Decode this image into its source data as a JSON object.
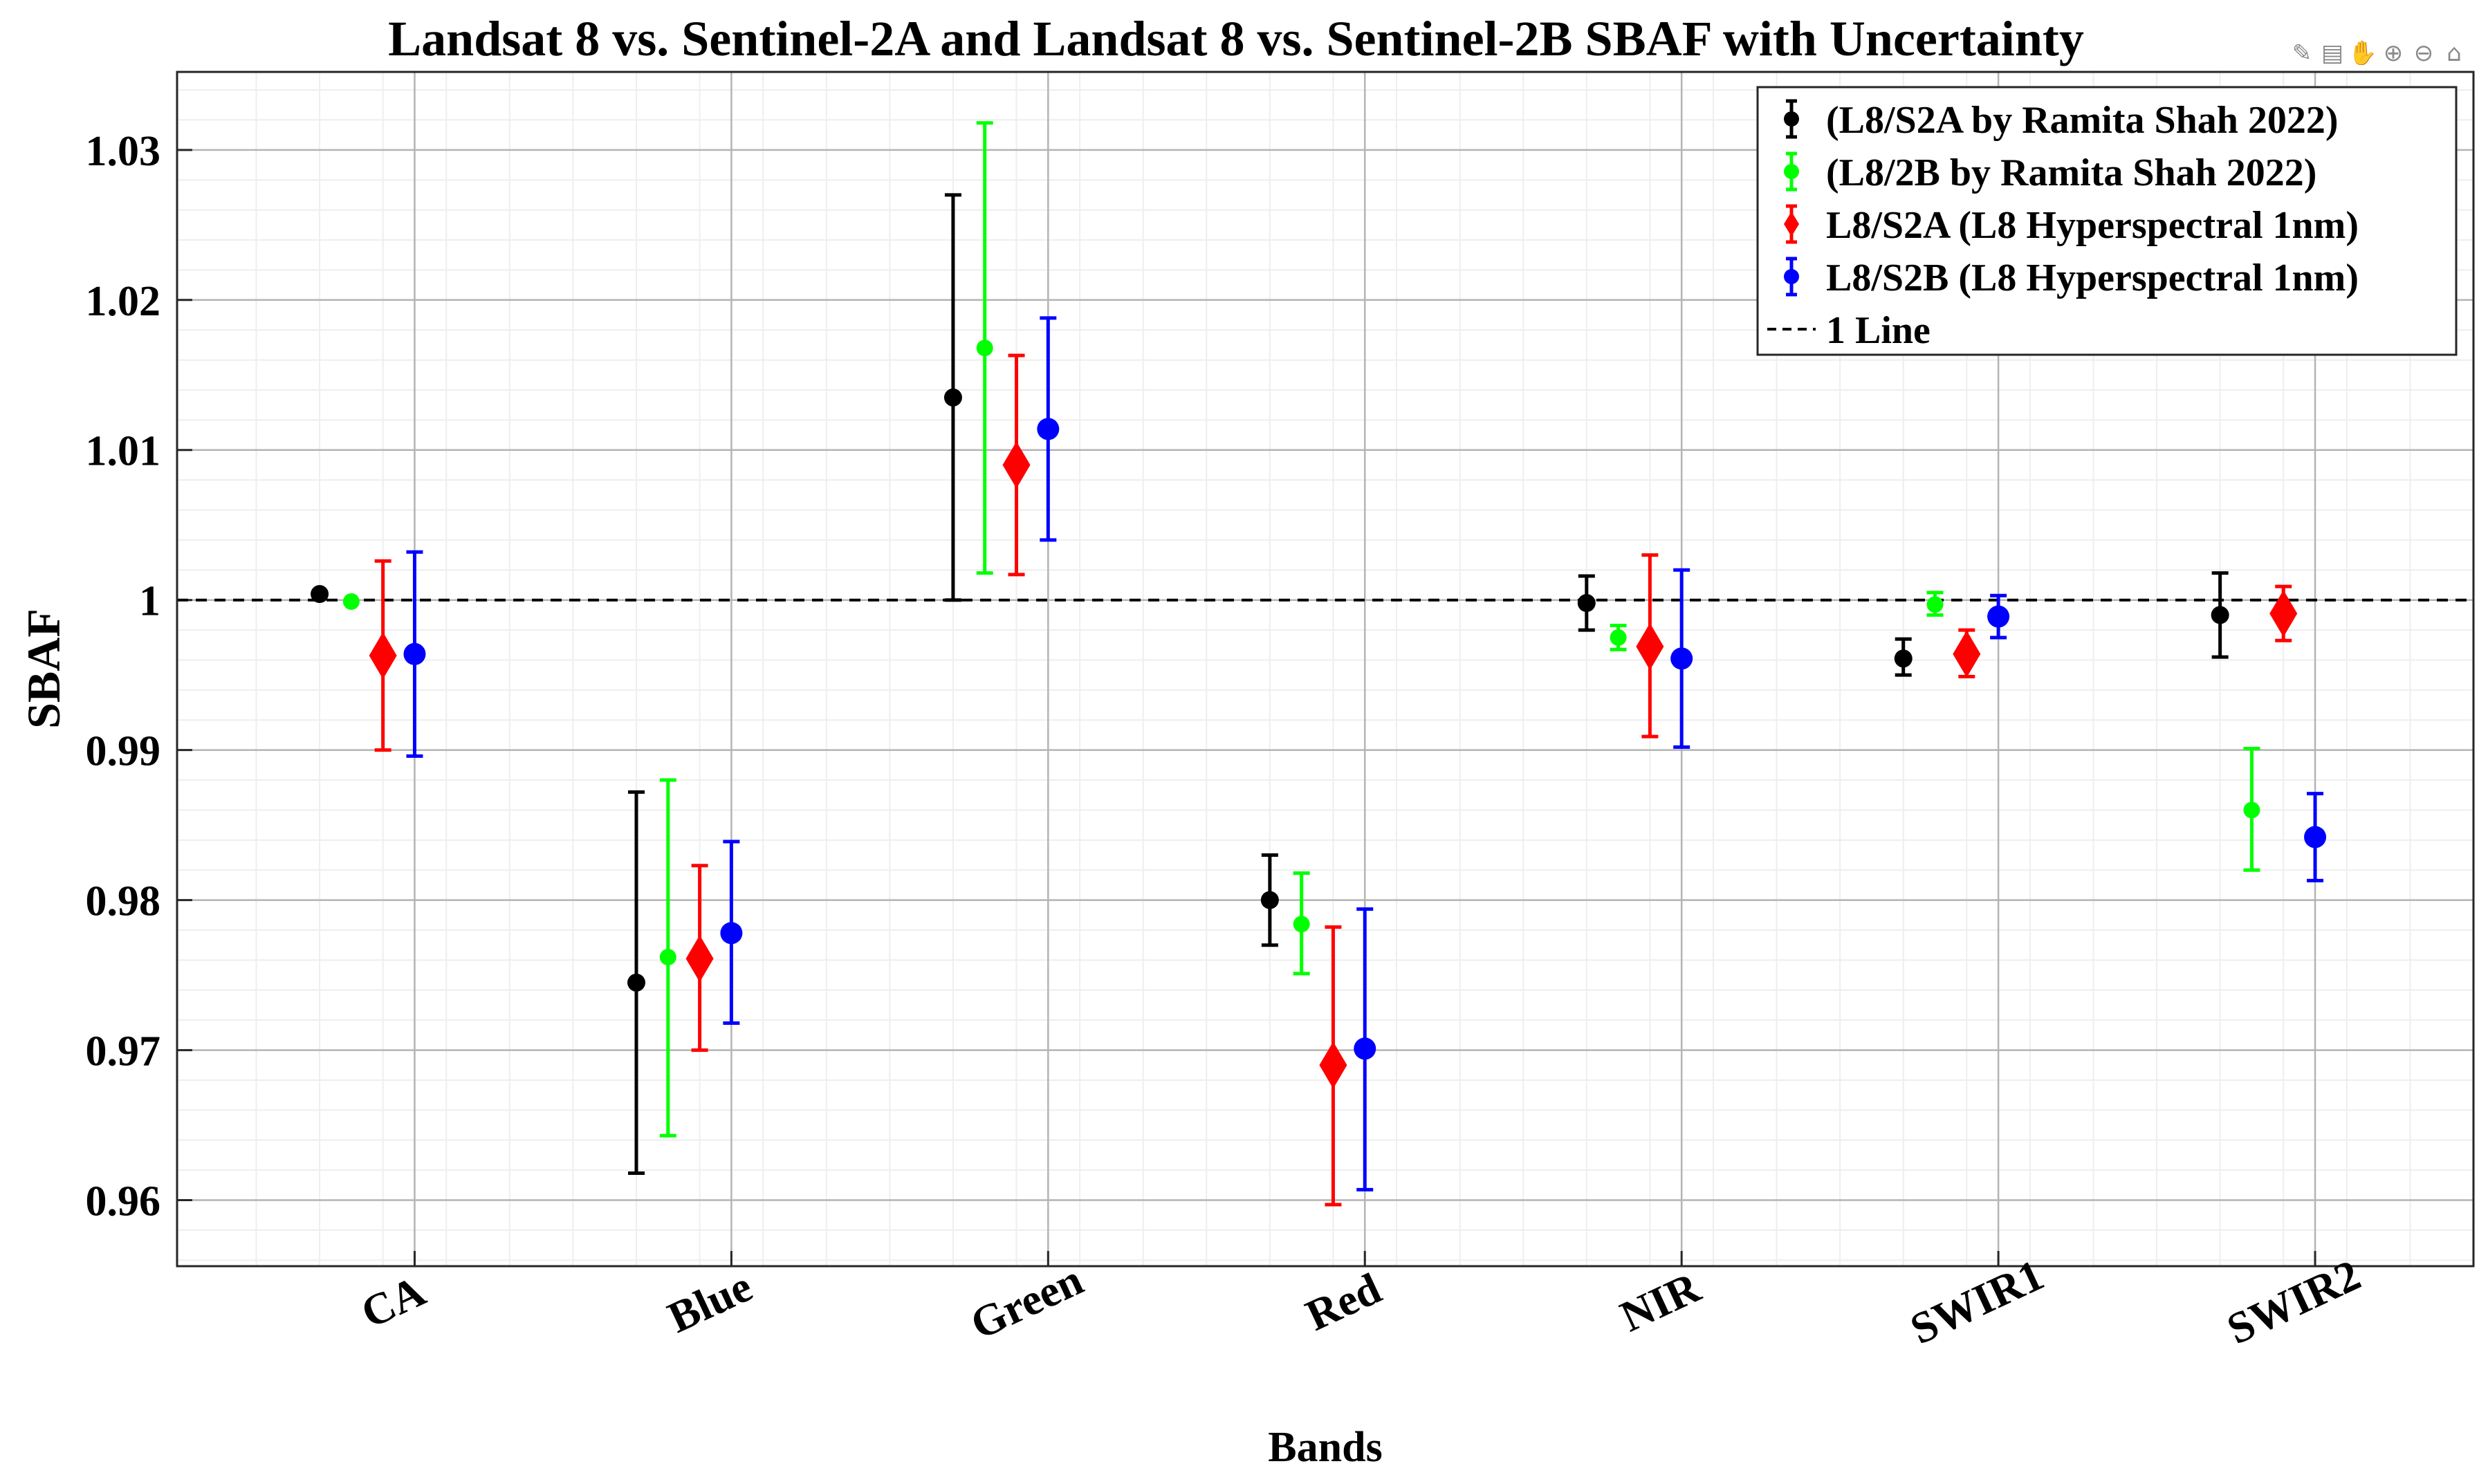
{
  "toolbar": {
    "icons": [
      "brush-icon",
      "data-tips-icon",
      "pan-icon",
      "zoom-in-icon",
      "zoom-out-icon",
      "home-icon"
    ],
    "glyphs": [
      "✎",
      "▤",
      "✋",
      "⊕",
      "⊖",
      "⌂"
    ]
  },
  "chart_data": {
    "type": "errorbar",
    "title": "Landsat 8 vs. Sentinel-2A and Landsat 8 vs. Sentinel-2B SBAF with Uncertainty",
    "xlabel": "Bands",
    "ylabel": "SBAF",
    "categories": [
      "CA",
      "Blue",
      "Green",
      "Red",
      "NIR",
      "SWIR1",
      "SWIR2"
    ],
    "ylim": [
      0.9556,
      1.0352
    ],
    "yticks": [
      0.96,
      0.97,
      0.98,
      0.99,
      1,
      1.01,
      1.02,
      1.03
    ],
    "ytick_labels": [
      "0.96",
      "0.97",
      "0.98",
      "0.99",
      "1",
      "1.01",
      "1.02",
      "1.03"
    ],
    "grid": true,
    "minor_grid": true,
    "legend_position": "top-right",
    "reference_line": {
      "name": "1 Line",
      "y": 1,
      "style": "dashed",
      "color": "#000000"
    },
    "series": [
      {
        "name": "(L8/S2A by Ramita Shah 2022)",
        "color": "#000000",
        "marker": "circle",
        "values": [
          1.0004,
          0.9745,
          1.0135,
          0.98,
          0.9998,
          0.9961,
          0.999
        ],
        "lower": [
          null,
          0.9618,
          1.0,
          0.977,
          0.998,
          0.995,
          0.9962
        ],
        "upper": [
          null,
          0.9872,
          1.027,
          0.983,
          1.0016,
          0.9974,
          1.0018
        ]
      },
      {
        "name": "(L8/2B by Ramita Shah 2022)",
        "color": "#00ff00",
        "marker": "circle",
        "values": [
          0.9999,
          0.9762,
          1.0168,
          0.9784,
          0.9975,
          0.9997,
          0.986
        ],
        "lower": [
          null,
          0.9643,
          1.0018,
          0.9751,
          0.9967,
          0.999,
          0.982
        ],
        "upper": [
          null,
          0.988,
          1.0318,
          0.9818,
          0.9983,
          1.0005,
          0.9901
        ]
      },
      {
        "name": "L8/S2A (L8 Hyperspectral 1nm)",
        "color": "#ff0000",
        "marker": "diamond",
        "values": [
          0.9963,
          0.9761,
          1.009,
          0.969,
          0.9969,
          0.9964,
          0.9991
        ],
        "lower": [
          0.99,
          0.97,
          1.0017,
          0.9597,
          0.9909,
          0.9949,
          0.9973
        ],
        "upper": [
          1.0026,
          0.9823,
          1.0163,
          0.9782,
          1.003,
          0.998,
          1.0009
        ]
      },
      {
        "name": "L8/S2B (L8 Hyperspectral 1nm)",
        "color": "#0000ff",
        "marker": "circle",
        "values": [
          0.9964,
          0.9778,
          1.0114,
          0.9701,
          0.9961,
          0.9989,
          0.9842
        ],
        "lower": [
          0.9896,
          0.9718,
          1.004,
          0.9607,
          0.9902,
          0.9975,
          0.9813
        ],
        "upper": [
          1.0032,
          0.9839,
          1.0188,
          0.9794,
          1.002,
          1.0003,
          0.9871
        ]
      }
    ]
  }
}
